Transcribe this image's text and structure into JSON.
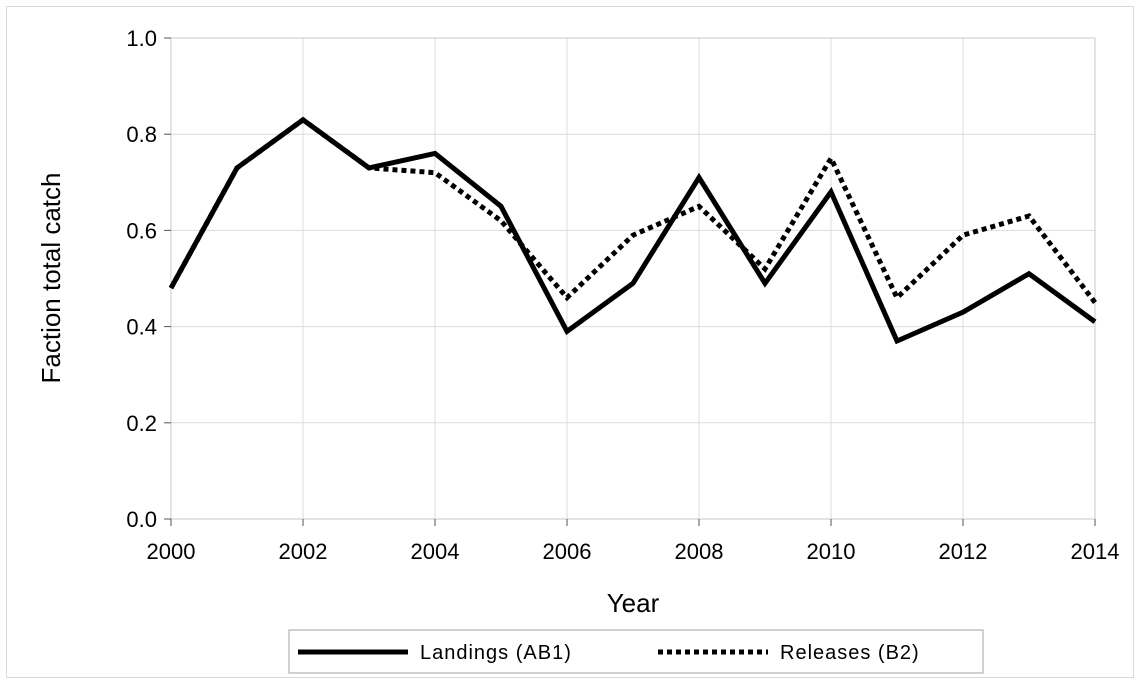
{
  "chart_data": {
    "type": "line",
    "title": "",
    "xlabel": "Year",
    "ylabel": "Faction total catch",
    "x": [
      2000,
      2001,
      2002,
      2003,
      2004,
      2005,
      2006,
      2007,
      2008,
      2009,
      2010,
      2011,
      2012,
      2013,
      2014
    ],
    "xlim": [
      2000,
      2014
    ],
    "ylim": [
      0.0,
      1.0
    ],
    "xticks": [
      "2000",
      "2002",
      "2004",
      "2006",
      "2008",
      "2010",
      "2012",
      "2014"
    ],
    "yticks": [
      "0.0",
      "0.2",
      "0.4",
      "0.6",
      "0.8",
      "1.0"
    ],
    "grid": true,
    "legend_position": "bottom",
    "series": [
      {
        "name": "Landings (AB1)",
        "style": "solid",
        "color": "#000000",
        "values": [
          0.48,
          0.73,
          0.83,
          0.73,
          0.76,
          0.65,
          0.39,
          0.49,
          0.71,
          0.49,
          0.68,
          0.37,
          0.43,
          0.51,
          0.41
        ]
      },
      {
        "name": "Releases (B2)",
        "style": "dotted",
        "color": "#000000",
        "values": [
          0.48,
          0.73,
          0.83,
          0.73,
          0.72,
          0.62,
          0.46,
          0.59,
          0.65,
          0.52,
          0.75,
          0.46,
          0.59,
          0.63,
          0.45
        ]
      }
    ]
  }
}
